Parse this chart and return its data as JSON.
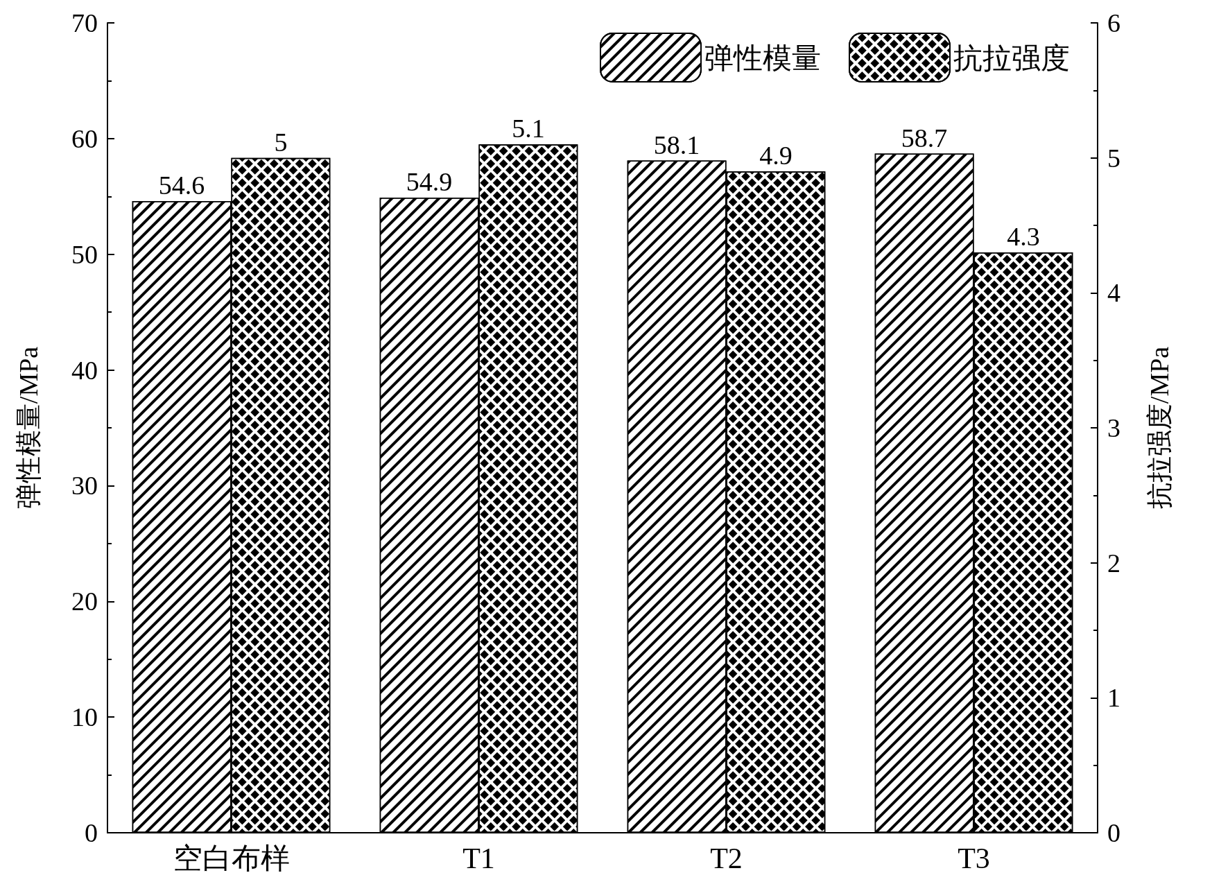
{
  "chart_data": {
    "type": "bar",
    "categories": [
      "空白布样",
      "T1",
      "T2",
      "T3"
    ],
    "series": [
      {
        "name": "弹性模量",
        "color": "#ffffff",
        "values": [
          54.6,
          54.9,
          58.1,
          58.7
        ]
      },
      {
        "name": "抗拉强度",
        "color": "#ffffff",
        "values": [
          5,
          5.1,
          4.9,
          4.3
        ],
        "axis": "y2"
      }
    ],
    "ylabel": "弹性模量/MPa",
    "y2label": "抗拉强度/MPa",
    "ylim": [
      0,
      70
    ],
    "yticks": [
      0,
      10,
      20,
      30,
      40,
      50,
      60,
      70
    ],
    "y2lim": [
      0,
      6
    ],
    "y2ticks": [
      0,
      1,
      2,
      3,
      4,
      5,
      6
    ],
    "data_labels": true,
    "legend": "top right",
    "grid": false
  }
}
